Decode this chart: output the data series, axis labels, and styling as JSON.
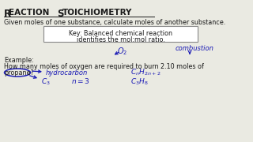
{
  "bg_color": "#eaeae2",
  "title_part1": "R",
  "title_text": "EACTION ",
  "title_part2": "S",
  "title_text2": "TOICHIOMETRY",
  "subtitle": "Given moles of one substance, calculate moles of another substance.",
  "box_line1": "Key: Balanced chemical reaction",
  "box_line2": "identifies the mol:mol ratio.",
  "example_line1": "Example:",
  "example_line2": "How many moles of oxygen are required to burn 2.10 moles of",
  "example_line3": "propane?",
  "blue": "#1a1ab5",
  "black": "#1a1a1a",
  "white": "#ffffff",
  "box_edge": "#888888"
}
